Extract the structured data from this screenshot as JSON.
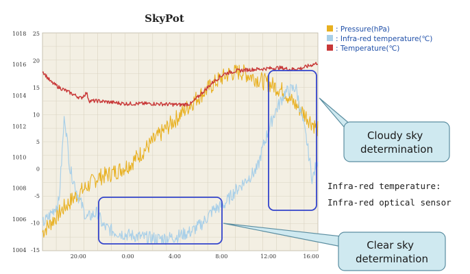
{
  "chart_data": {
    "type": "line",
    "title": "SkyPot",
    "left_axis_ticks": [
      "1018",
      "1016",
      "1014",
      "1012",
      "1010",
      "1008",
      "1006",
      "1004"
    ],
    "right_axis_ticks": [
      "25",
      "20",
      "15",
      "10",
      "5",
      "0",
      "-5",
      "-10",
      "-15"
    ],
    "x_ticks": [
      "20:00",
      "0:00",
      "4:00",
      "8:00",
      "12:00",
      "16:00"
    ],
    "ylim_pressure": [
      1004,
      1018
    ],
    "ylim_temperature": [
      -15,
      25
    ],
    "legend_position": "top-right",
    "series": [
      {
        "name": ": Pressure(hPa)",
        "color": "#e8b020",
        "axis": "pressure",
        "x": [
          0.0,
          0.04,
          0.08,
          0.12,
          0.16,
          0.2,
          0.24,
          0.28,
          0.32,
          0.36,
          0.4,
          0.44,
          0.48,
          0.52,
          0.56,
          0.6,
          0.64,
          0.68,
          0.72,
          0.76,
          0.8,
          0.84,
          0.88,
          0.9,
          0.93,
          0.96,
          1.0
        ],
        "y": [
          1005.2,
          1006.0,
          1006.8,
          1007.5,
          1008.1,
          1008.7,
          1008.9,
          1009.2,
          1009.6,
          1010.3,
          1011.0,
          1011.7,
          1012.4,
          1013.1,
          1013.8,
          1014.4,
          1015.0,
          1015.4,
          1015.5,
          1015.2,
          1014.9,
          1014.6,
          1014.2,
          1013.7,
          1013.2,
          1012.6,
          1011.8
        ]
      },
      {
        "name": ": Infra-red temperature(℃)",
        "color": "#a8cfe8",
        "axis": "temperature",
        "x": [
          0.0,
          0.02,
          0.06,
          0.08,
          0.1,
          0.13,
          0.16,
          0.2,
          0.22,
          0.26,
          0.3,
          0.36,
          0.42,
          0.48,
          0.54,
          0.58,
          0.62,
          0.66,
          0.7,
          0.74,
          0.78,
          0.8,
          0.84,
          0.86,
          0.88,
          0.92,
          0.96,
          0.98,
          1.0
        ],
        "y": [
          -10,
          -9,
          -6,
          10,
          0,
          -5,
          -9,
          -8,
          -10.5,
          -11.5,
          -12,
          -12.5,
          -12.8,
          -12.5,
          -11.5,
          -10,
          -7.5,
          -6.5,
          -4,
          -2,
          0,
          4,
          10,
          12,
          14,
          15,
          5,
          -2,
          2
        ]
      },
      {
        "name": ": Temperature(℃)",
        "color": "#c83838",
        "axis": "temperature",
        "x": [
          0.0,
          0.03,
          0.06,
          0.1,
          0.14,
          0.16,
          0.17,
          0.2,
          0.3,
          0.4,
          0.5,
          0.54,
          0.58,
          0.62,
          0.66,
          0.7,
          0.74,
          0.8,
          0.86,
          0.9,
          0.94,
          0.97,
          1.0
        ],
        "y": [
          18,
          16,
          15,
          14,
          13,
          14,
          12.5,
          12.5,
          12,
          12,
          11.8,
          12,
          14,
          16,
          17.5,
          18,
          18.2,
          18.4,
          18.6,
          18.3,
          18.5,
          19,
          19.5
        ]
      }
    ]
  },
  "callouts": {
    "cloudy": "Cloudy sky\ndetermination",
    "clear": "Clear sky\ndetermination"
  },
  "note": {
    "line1": "Infra-red temperature:",
    "line2": "Infra-red optical sensor"
  },
  "colors": {
    "plot_bg": "#f3efe3",
    "grid": "#d9d3c1",
    "box": "#3344cc",
    "callout_fill": "#cfe9f0",
    "callout_stroke": "#5a8da0"
  }
}
